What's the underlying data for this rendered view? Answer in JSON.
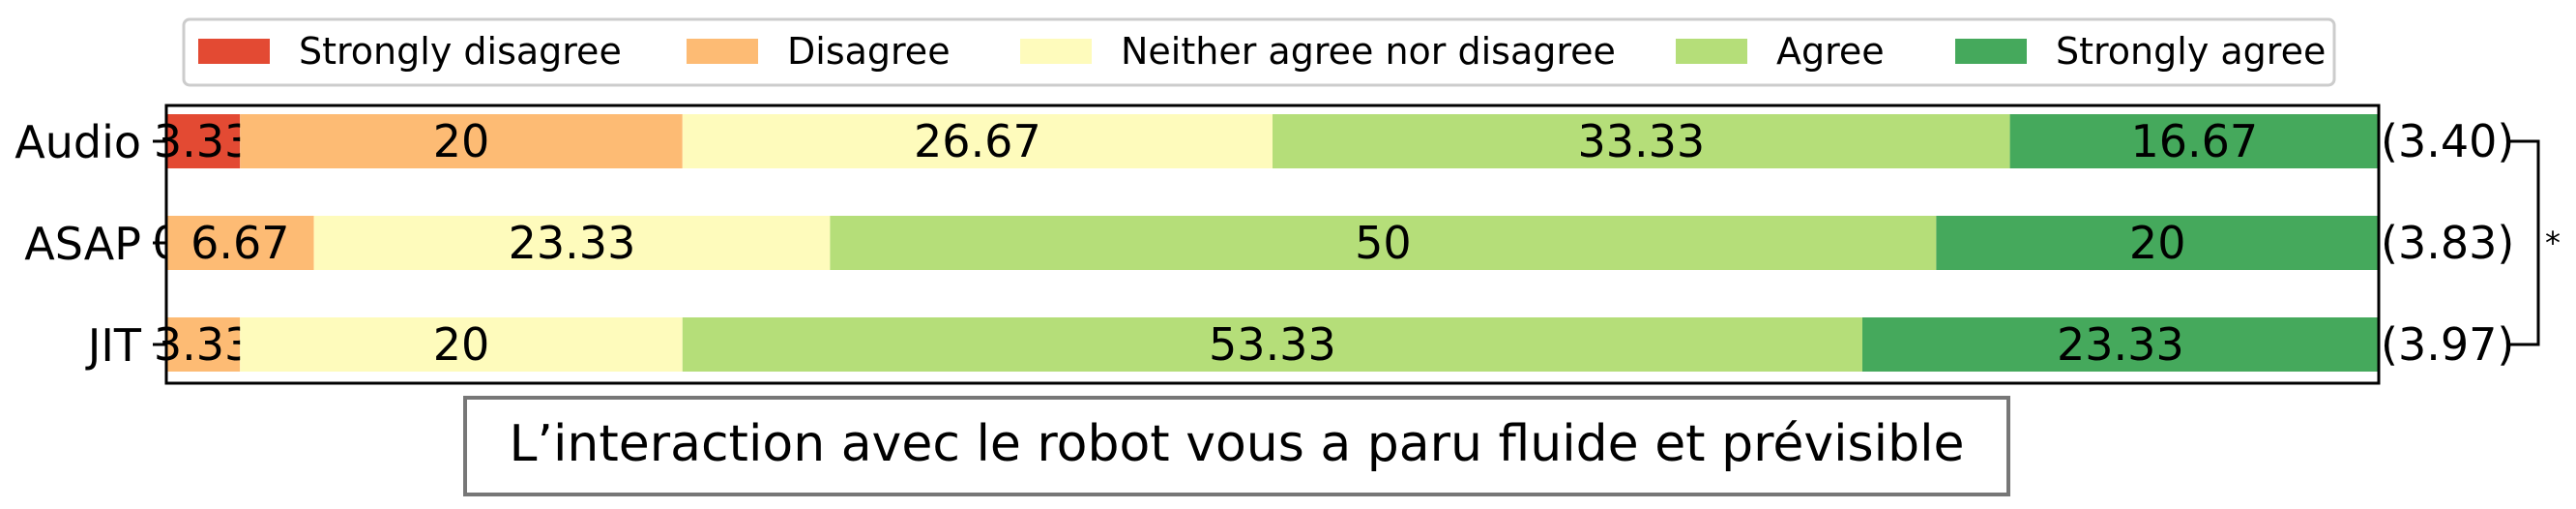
{
  "chart_data": {
    "type": "bar",
    "orientation": "horizontal",
    "stacked": true,
    "categories": [
      "Audio",
      "ASAP",
      "JIT"
    ],
    "series": [
      {
        "name": "Strongly disagree",
        "color": "#e34a33",
        "values": [
          3.33,
          0,
          0
        ]
      },
      {
        "name": "Disagree",
        "color": "#fdbb74",
        "values": [
          20,
          6.67,
          3.33
        ]
      },
      {
        "name": "Neither agree nor disagree",
        "color": "#fefbbc",
        "values": [
          26.67,
          23.33,
          20
        ]
      },
      {
        "name": "Agree",
        "color": "#b5de79",
        "values": [
          33.33,
          50,
          53.33
        ]
      },
      {
        "name": "Strongly agree",
        "color": "#45a95c",
        "values": [
          16.67,
          20,
          23.33
        ]
      }
    ],
    "segment_labels": [
      [
        "3.33",
        "20",
        "26.67",
        "33.33",
        "16.67"
      ],
      [
        "0",
        "6.67",
        "23.33",
        "50",
        "20"
      ],
      [
        "",
        "3.33",
        "20",
        "53.33",
        "23.33"
      ]
    ],
    "means": [
      "(3.40)",
      "(3.83)",
      "(3.97)"
    ],
    "significance": "*",
    "xlim": [
      0,
      100
    ],
    "legend_position": "top",
    "title": "L’interaction avec le robot vous a paru fluide et prévisible"
  }
}
